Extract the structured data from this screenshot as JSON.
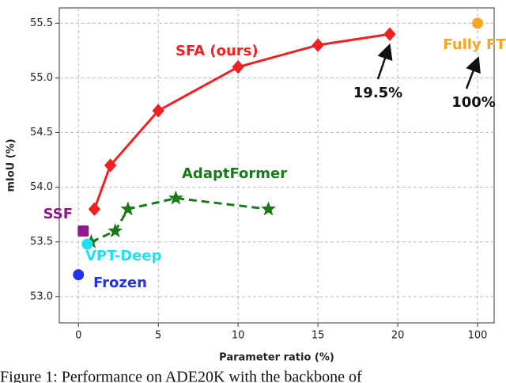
{
  "chart_data": {
    "type": "line",
    "x_label": "Parameter ratio (%)",
    "y_label": "mIoU (%)",
    "x_scale": "piecewise",
    "xlim": [
      -1.2,
      116.6
    ],
    "xticks": [
      0,
      5,
      10,
      15,
      20,
      100
    ],
    "ylim": [
      52.76,
      55.64
    ],
    "yticks": [
      {
        "value": 53.0,
        "label": "53.0"
      },
      {
        "value": 53.5,
        "label": "53.5"
      },
      {
        "value": 54.0,
        "label": "54.0"
      },
      {
        "value": 54.5,
        "label": "54.5"
      },
      {
        "value": 55.0,
        "label": "55.0"
      },
      {
        "value": 55.5,
        "label": "55.5"
      }
    ],
    "grid": true,
    "series": [
      {
        "name": "SFA (ours)",
        "color": "#ee2222",
        "marker": "diamond",
        "x": [
          1,
          2,
          5,
          10,
          15,
          19.5
        ],
        "values": [
          53.8,
          54.2,
          54.7,
          55.1,
          55.3,
          55.4
        ]
      },
      {
        "name": "AdaptFormer",
        "color": "#1a7a1a",
        "marker": "star",
        "dash": true,
        "x": [
          0.8,
          2.3,
          3.1,
          6.1,
          11.9
        ],
        "values": [
          53.5,
          53.6,
          53.8,
          53.9,
          53.8
        ]
      },
      {
        "name": "SSF",
        "color": "#8b1a8b",
        "marker": "square",
        "x": [
          0.3
        ],
        "values": [
          53.6
        ]
      },
      {
        "name": "VPT-Deep",
        "color": "#20e0f0",
        "marker": "circle",
        "x": [
          0.55
        ],
        "values": [
          53.48
        ]
      },
      {
        "name": "Frozen",
        "color": "#2233ee",
        "marker": "circle",
        "x": [
          0
        ],
        "values": [
          53.2
        ]
      },
      {
        "name": "Fully FT",
        "color": "#f5a623",
        "marker": "circle",
        "x": [
          100
        ],
        "values": [
          55.5
        ]
      }
    ],
    "annotations": [
      "19.5%",
      "100%"
    ]
  },
  "caption": "Figure 1: Performance on ADE20K with the backbone of"
}
